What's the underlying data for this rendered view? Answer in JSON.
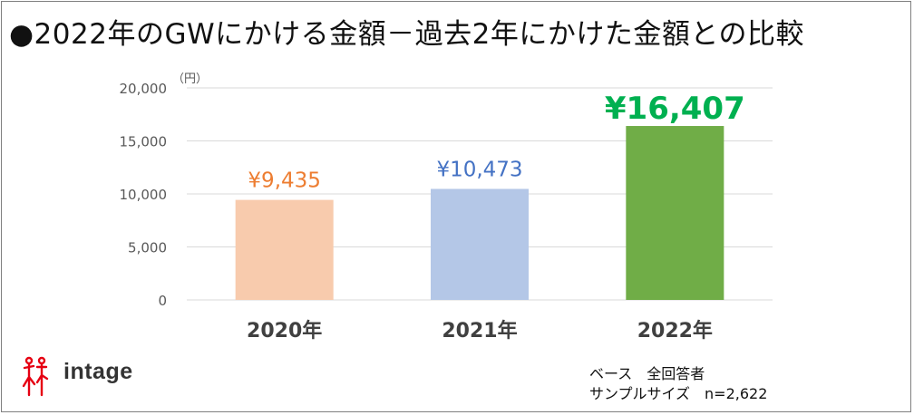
{
  "title": "●2022年のGWにかける金額－過去2年にかけた金額との比較",
  "brand": "intage",
  "notes": {
    "base": "ベース　全回答者",
    "sample": "サンプルサイズ　n=2,622"
  },
  "colors": {
    "bar_2020": "#f8cbad",
    "bar_2021": "#b4c7e7",
    "bar_2022": "#70ad47",
    "label_2020": "#ed7d31",
    "label_2021": "#4472c4",
    "label_2022": "#00b050",
    "logo_red": "#e60012"
  },
  "chart_data": {
    "type": "bar",
    "unit": "（円）",
    "categories": [
      "2020年",
      "2021年",
      "2022年"
    ],
    "values": [
      9435,
      10473,
      16407
    ],
    "value_labels": [
      "¥9,435",
      "¥10,473",
      "¥16,407"
    ],
    "yticks": [
      "0",
      "5,000",
      "10,000",
      "15,000",
      "20,000"
    ],
    "ylim": [
      0,
      20000
    ],
    "grid": true
  }
}
